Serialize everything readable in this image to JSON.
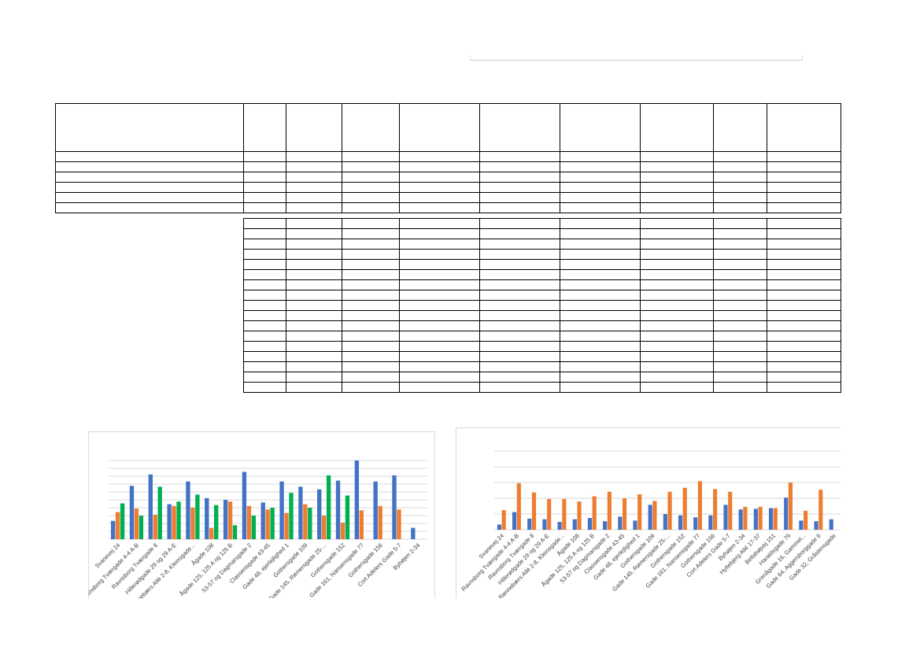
{
  "chart_data": [
    {
      "type": "bar",
      "title": "",
      "xlabel": "",
      "ylabel": "",
      "legend": "none",
      "grid": true,
      "ylim": [
        0,
        9
      ],
      "categories": [
        "Svanevej 24",
        "Ravnsborg Tværgade 4-4 A-B",
        "Ravnsborg Tværgade 8",
        "Hillerødgade 29 og 29 A-E",
        "Rønnebærs Allé 2-8, Kleinsgade...",
        "Ågade 108",
        "Ågade 125, 125 A og 125 B",
        "53-57 og Dagmarsgade 2",
        "Classensgade 43-45",
        "Gade 48, ejerlejlighed 1",
        "Gothersgade 109",
        "Gade 145, Rømersgade 25-...",
        "Gothersgade 152",
        "Gade 161, Nansensgade 77",
        "Gothersgade 156",
        "Cort Adelers Gade 5-7",
        "Byhøjen 2-34"
      ],
      "series": [
        {
          "color": "#4472c4",
          "values": [
            2.1,
            6.1,
            7.4,
            4.0,
            6.6,
            4.7,
            4.5,
            7.7,
            4.2,
            6.6,
            6.0,
            5.7,
            6.7,
            9.0,
            6.6,
            7.3,
            1.3
          ]
        },
        {
          "color": "#ed7d31",
          "values": [
            3.1,
            3.5,
            2.8,
            3.8,
            3.6,
            1.3,
            4.3,
            3.8,
            3.4,
            3.0,
            4.0,
            2.7,
            1.9,
            3.3,
            3.8,
            3.4,
            null
          ]
        },
        {
          "color": "#00b050",
          "values": [
            4.1,
            2.7,
            6.0,
            4.3,
            5.1,
            3.9,
            1.6,
            2.7,
            3.6,
            5.3,
            3.6,
            7.3,
            5.0,
            null,
            null,
            null,
            null
          ]
        }
      ]
    },
    {
      "type": "bar",
      "title": "",
      "xlabel": "",
      "ylabel": "",
      "legend": "none",
      "grid": true,
      "ylim": [
        0,
        6
      ],
      "categories": [
        "Svanevej 24",
        "Ravnsborg Tværgade 4-4 A-B",
        "Ravnsborg Tværgade 8",
        "Hillerødgade 29 og 29 A-E",
        "Rønnebærs Allé 2-8, Kleinsgade...",
        "Ågade 108",
        "Ågade 125, 125 A og 125 B",
        "53-57 og Dagmarsgade 2",
        "Classensgade 43-45",
        "Gade 48, ejerlejlighed 1",
        "Gothersgade 109",
        "Gade 145, Rømersgade 25-...",
        "Gothersgade 152",
        "Gade 161, Nansensgade 77",
        "Gothersgade 156",
        "Cort Adelers Gade 5-7",
        "Byhøjen 2-34",
        "Hyltebjerg Allé 17-37",
        "Bellahøjvej 151",
        "Haraldsgade 79",
        "Grenågade 16, Gammel...",
        "Gade 64, Aggersborggade 6",
        "Gade 32, Gråstensgade"
      ],
      "series": [
        {
          "color": "#4472c4",
          "values": [
            0.4,
            1.35,
            0.85,
            0.8,
            0.6,
            0.8,
            0.9,
            0.65,
            1.0,
            0.7,
            1.9,
            1.2,
            1.1,
            0.95,
            1.1,
            1.9,
            1.55,
            1.6,
            1.65,
            2.45,
            0.7,
            0.65,
            0.8
          ]
        },
        {
          "color": "#ed7d31",
          "values": [
            1.5,
            3.55,
            2.85,
            2.35,
            2.35,
            2.15,
            2.55,
            2.9,
            2.4,
            2.7,
            2.2,
            2.9,
            3.2,
            3.7,
            3.1,
            2.9,
            1.75,
            1.75,
            1.65,
            3.6,
            1.45,
            3.05,
            null
          ]
        }
      ]
    }
  ]
}
